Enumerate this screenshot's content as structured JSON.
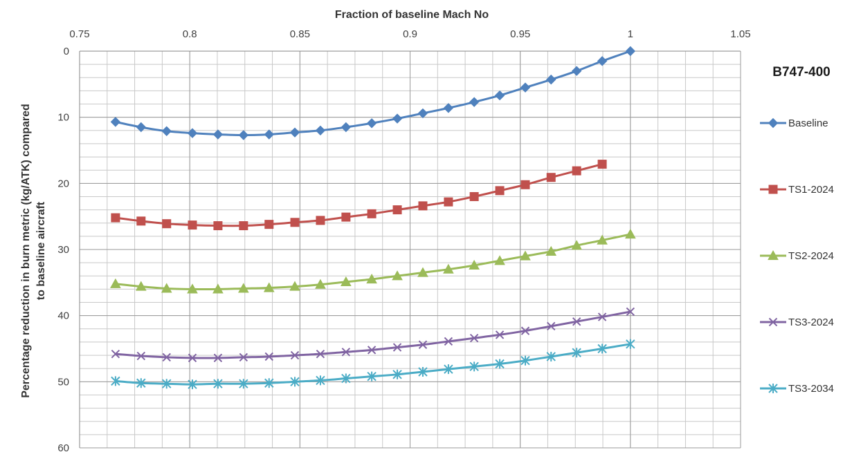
{
  "chart_data": {
    "type": "line",
    "title": "B747-400",
    "xlabel": "Fraction of baseline Mach No",
    "ylabel_line1": "Percentage reduction in burn metric (kg/ATK) compared",
    "ylabel_line2": "to baseline aircraft",
    "xlim": [
      0.75,
      1.05
    ],
    "ylim": [
      0,
      60
    ],
    "x_axis_position": "top",
    "y_axis_reversed": true,
    "grid": true,
    "legend_position": "right",
    "x_ticks": [
      "0.75",
      "0.8",
      "0.85",
      "0.9",
      "0.95",
      "1",
      "1.05"
    ],
    "y_ticks": [
      "0",
      "10",
      "20",
      "30",
      "40",
      "50",
      "60"
    ],
    "series": [
      {
        "name": "Baseline",
        "color": "#4F81BD",
        "marker": "diamond",
        "x": [
          0.7663,
          0.7779,
          0.7895,
          0.8012,
          0.8128,
          0.8244,
          0.836,
          0.8477,
          0.8593,
          0.8709,
          0.8826,
          0.8942,
          0.9058,
          0.9174,
          0.9291,
          0.9407,
          0.9523,
          0.964,
          0.9756,
          0.9872,
          1.0
        ],
        "y": [
          10.7,
          11.5,
          12.1,
          12.4,
          12.6,
          12.7,
          12.6,
          12.3,
          12.0,
          11.5,
          10.9,
          10.2,
          9.4,
          8.6,
          7.7,
          6.7,
          5.5,
          4.3,
          3.0,
          1.5,
          0
        ]
      },
      {
        "name": "TS1-2024",
        "color": "#C0504D",
        "marker": "square",
        "x": [
          0.7663,
          0.7779,
          0.7895,
          0.8012,
          0.8128,
          0.8244,
          0.836,
          0.8477,
          0.8593,
          0.8709,
          0.8826,
          0.8942,
          0.9058,
          0.9174,
          0.9291,
          0.9407,
          0.9523,
          0.964,
          0.9756,
          0.9872
        ],
        "y": [
          25.2,
          25.7,
          26.1,
          26.3,
          26.4,
          26.4,
          26.2,
          25.9,
          25.6,
          25.1,
          24.6,
          24.0,
          23.4,
          22.8,
          22.0,
          21.1,
          20.2,
          19.1,
          18.1,
          17.1
        ]
      },
      {
        "name": "TS2-2024",
        "color": "#9BBB59",
        "marker": "triangle",
        "x": [
          0.7663,
          0.7779,
          0.7895,
          0.8012,
          0.8128,
          0.8244,
          0.836,
          0.8477,
          0.8593,
          0.8709,
          0.8826,
          0.8942,
          0.9058,
          0.9174,
          0.9291,
          0.9407,
          0.9523,
          0.964,
          0.9756,
          0.9872,
          1.0
        ],
        "y": [
          35.2,
          35.6,
          35.9,
          36.0,
          36.0,
          35.9,
          35.8,
          35.6,
          35.3,
          34.9,
          34.5,
          34.0,
          33.5,
          33.0,
          32.4,
          31.7,
          31.0,
          30.3,
          29.4,
          28.6,
          27.7
        ]
      },
      {
        "name": "TS3-2024",
        "color": "#8064A2",
        "marker": "x",
        "x": [
          0.7663,
          0.7779,
          0.7895,
          0.8012,
          0.8128,
          0.8244,
          0.836,
          0.8477,
          0.8593,
          0.8709,
          0.8826,
          0.8942,
          0.9058,
          0.9174,
          0.9291,
          0.9407,
          0.9523,
          0.964,
          0.9756,
          0.9872,
          1.0
        ],
        "y": [
          45.8,
          46.1,
          46.3,
          46.4,
          46.4,
          46.3,
          46.2,
          46.0,
          45.8,
          45.5,
          45.2,
          44.8,
          44.4,
          43.9,
          43.4,
          42.9,
          42.3,
          41.6,
          40.9,
          40.2,
          39.4
        ]
      },
      {
        "name": "TS3-2034",
        "color": "#4BACC6",
        "marker": "star",
        "x": [
          0.7663,
          0.7779,
          0.7895,
          0.8012,
          0.8128,
          0.8244,
          0.836,
          0.8477,
          0.8593,
          0.8709,
          0.8826,
          0.8942,
          0.9058,
          0.9174,
          0.9291,
          0.9407,
          0.9523,
          0.964,
          0.9756,
          0.9872,
          1.0
        ],
        "y": [
          49.9,
          50.2,
          50.3,
          50.4,
          50.3,
          50.3,
          50.2,
          50.0,
          49.8,
          49.5,
          49.2,
          48.9,
          48.5,
          48.1,
          47.7,
          47.3,
          46.8,
          46.2,
          45.6,
          45.0,
          44.3
        ]
      }
    ]
  }
}
